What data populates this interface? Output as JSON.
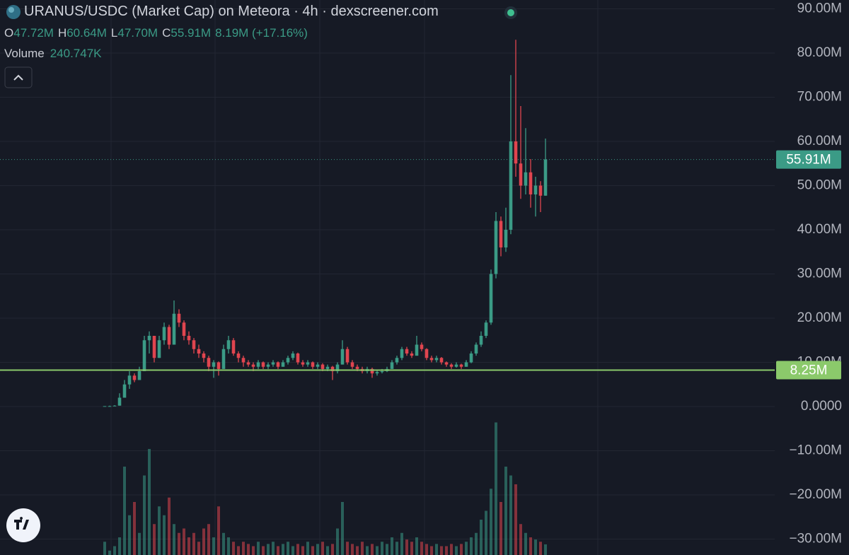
{
  "chart_data": {
    "type": "candlestick",
    "title": "URANUS/USDC (Market Cap) on Meteora · 4h · dexscreener.com",
    "ohlc_legend": [
      {
        "key": "O",
        "text": "47.72M"
      },
      {
        "key": "H",
        "text": "60.64M"
      },
      {
        "key": "L",
        "text": "47.70M"
      },
      {
        "key": "C",
        "text": "55.91M"
      }
    ],
    "change_text": "8.19M (+17.16%)",
    "volume_title": "Volume",
    "volume_text": "240.747K",
    "up_color": "#3b9b86",
    "down_color": "#e0454f",
    "grid": true,
    "ylim": [
      -32000000,
      92000000
    ],
    "yticks": [
      {
        "value": 90000000,
        "label": "90.00M"
      },
      {
        "value": 80000000,
        "label": "80.00M"
      },
      {
        "value": 70000000,
        "label": "70.00M"
      },
      {
        "value": 60000000,
        "label": "60.00M"
      },
      {
        "value": 50000000,
        "label": "50.00M"
      },
      {
        "value": 40000000,
        "label": "40.00M"
      },
      {
        "value": 30000000,
        "label": "30.00M"
      },
      {
        "value": 20000000,
        "label": "20.00M"
      },
      {
        "value": 10000000,
        "label": "10.00M"
      },
      {
        "value": 0,
        "label": "0.0000"
      },
      {
        "value": -10000000,
        "label": "−10.00M"
      },
      {
        "value": -20000000,
        "label": "−20.00M"
      },
      {
        "value": -30000000,
        "label": "−30.00M"
      }
    ],
    "price_lines": [
      {
        "value": 55910000,
        "label": "55.91M",
        "color": "#3b9b86",
        "style": "dotted"
      },
      {
        "value": 8250000,
        "label": "8.25M",
        "color": "#8bc96b",
        "style": "solid"
      }
    ],
    "open": [
      100000.0,
      100000.0,
      100000.0,
      200000.0,
      2000000.0,
      5000000.0,
      7000000.0,
      6000000.0,
      8000000.0,
      15000000.0,
      16000000.0,
      11000000.0,
      15000000.0,
      18000000.0,
      14000000.0,
      21000000.0,
      19000000.0,
      16000000.0,
      15000000.0,
      13000000.0,
      12000000.0,
      11000000.0,
      9000000.0,
      10000000.0,
      8500000.0,
      13000000.0,
      15000000.0,
      12000000.0,
      11000000.0,
      10000000.0,
      9500000.0,
      9000000.0,
      10000000.0,
      9000000.0,
      9500000.0,
      10000000.0,
      9000000.0,
      10000000.0,
      11000000.0,
      12000000.0,
      10000000.0,
      9500000.0,
      10000000.0,
      9000000.0,
      9500000.0,
      8500000.0,
      9000000.0,
      8000000.0,
      9500000.0,
      13000000.0,
      10000000.0,
      9000000.0,
      8500000.0,
      8000000.0,
      8500000.0,
      7500000.0,
      7800000.0,
      8000000.0,
      8500000.0,
      10000000.0,
      11000000.0,
      13000000.0,
      12000000.0,
      11500000.0,
      14000000.0,
      13000000.0,
      11000000.0,
      10500000.0,
      11000000.0,
      10000000.0,
      9500000.0,
      9000000.0,
      9500000.0,
      9000000.0,
      10000000.0,
      12000000.0,
      14000000.0,
      16000000.0,
      19000000.0,
      30000000.0,
      42000000.0,
      36000000.0,
      40000000.0,
      60000000.0,
      55000000.0,
      50000000.0,
      53000000.0,
      48000000.0,
      50000000.0,
      47720000.0
    ],
    "high": [
      100000.0,
      200000.0,
      300000.0,
      3000000.0,
      6000000.0,
      8000000.0,
      7500000.0,
      9000000.0,
      16000000.0,
      17000000.0,
      16000000.0,
      16000000.0,
      19000000.0,
      18500000.0,
      24000000.0,
      22000000.0,
      19500000.0,
      17000000.0,
      15500000.0,
      14000000.0,
      12500000.0,
      11500000.0,
      10500000.0,
      10200000.0,
      14000000.0,
      16000000.0,
      15500000.0,
      12500000.0,
      11500000.0,
      10500000.0,
      10000000.0,
      10500000.0,
      10200000.0,
      10000000.0,
      10500000.0,
      10200000.0,
      10500000.0,
      11500000.0,
      12500000.0,
      12200000.0,
      10500000.0,
      10500000.0,
      10200000.0,
      10000000.0,
      9800000.0,
      9500000.0,
      9200000.0,
      10000000.0,
      15000000.0,
      13500000.0,
      10500000.0,
      9500000.0,
      9000000.0,
      9000000.0,
      8800000.0,
      8200000.0,
      8500000.0,
      9000000.0,
      10500000.0,
      11500000.0,
      13500000.0,
      13500000.0,
      12500000.0,
      16000000.0,
      14500000.0,
      13200000.0,
      11500000.0,
      11500000.0,
      11200000.0,
      10200000.0,
      9800000.0,
      10000000.0,
      9700000.0,
      10500000.0,
      12500000.0,
      14500000.0,
      17000000.0,
      19500000.0,
      31000000.0,
      44000000.0,
      43000000.0,
      45000000.0,
      75000000.0,
      83000000.0,
      68000000.0,
      63000000.0,
      56000000.0,
      52000000.0,
      51000000.0,
      60640000.0
    ],
    "low": [
      100000.0,
      100000.0,
      100000.0,
      200000.0,
      2000000.0,
      4000000.0,
      5500000.0,
      6000000.0,
      8000000.0,
      12000000.0,
      10000000.0,
      11000000.0,
      14000000.0,
      13000000.0,
      14000000.0,
      18000000.0,
      15000000.0,
      14000000.0,
      12000000.0,
      11000000.0,
      10000000.0,
      8000000.0,
      6500000.0,
      7000000.0,
      8500000.0,
      12000000.0,
      11500000.0,
      10000000.0,
      9000000.0,
      9000000.0,
      8000000.0,
      8500000.0,
      8500000.0,
      8500000.0,
      9000000.0,
      8500000.0,
      9000000.0,
      9500000.0,
      10500000.0,
      9500000.0,
      9000000.0,
      9000000.0,
      8500000.0,
      8500000.0,
      8000000.0,
      8000000.0,
      6000000.0,
      7500000.0,
      9500000.0,
      9500000.0,
      8500000.0,
      8000000.0,
      7500000.0,
      7500000.0,
      6500000.0,
      7000000.0,
      7500000.0,
      7800000.0,
      8500000.0,
      9500000.0,
      10500000.0,
      11500000.0,
      11000000.0,
      11500000.0,
      12500000.0,
      10500000.0,
      10000000.0,
      10000000.0,
      9500000.0,
      9000000.0,
      8500000.0,
      8800000.0,
      8500000.0,
      9000000.0,
      9800000.0,
      11500000.0,
      13500000.0,
      15500000.0,
      18500000.0,
      29000000.0,
      34000000.0,
      35000000.0,
      39000000.0,
      52000000.0,
      47000000.0,
      48000000.0,
      45000000.0,
      43000000.0,
      44000000.0,
      47700000.0
    ],
    "close": [
      100000.0,
      100000.0,
      200000.0,
      2000000.0,
      5000000.0,
      7000000.0,
      6000000.0,
      8000000.0,
      15000000.0,
      16000000.0,
      11000000.0,
      15000000.0,
      18000000.0,
      14000000.0,
      21000000.0,
      19000000.0,
      16000000.0,
      15000000.0,
      13000000.0,
      12000000.0,
      11000000.0,
      9000000.0,
      10000000.0,
      8500000.0,
      13000000.0,
      15000000.0,
      12000000.0,
      11000000.0,
      10000000.0,
      9500000.0,
      9000000.0,
      10000000.0,
      9000000.0,
      9500000.0,
      10000000.0,
      9000000.0,
      10000000.0,
      11000000.0,
      12000000.0,
      10000000.0,
      9500000.0,
      10000000.0,
      9000000.0,
      9500000.0,
      8500000.0,
      9000000.0,
      8000000.0,
      9500000.0,
      13000000.0,
      10000000.0,
      9000000.0,
      8500000.0,
      8000000.0,
      8500000.0,
      7500000.0,
      7800000.0,
      8000000.0,
      8500000.0,
      10000000.0,
      11000000.0,
      13000000.0,
      12000000.0,
      11500000.0,
      14000000.0,
      13000000.0,
      11000000.0,
      10500000.0,
      11000000.0,
      10000000.0,
      9500000.0,
      9000000.0,
      9500000.0,
      9000000.0,
      10000000.0,
      12000000.0,
      14000000.0,
      16000000.0,
      19000000.0,
      30000000.0,
      42000000.0,
      36000000.0,
      40000000.0,
      60000000.0,
      55000000.0,
      50000000.0,
      53000000.0,
      48000000.0,
      50000000.0,
      47720000.0,
      55910000.0
    ],
    "volume": [
      300000,
      100000,
      200000,
      400000,
      2000000,
      900000,
      1200000,
      500000,
      1800000,
      2400000,
      700000,
      1100000,
      900000,
      1300000,
      700000,
      500000,
      600000,
      400000,
      500000,
      300000,
      600000,
      700000,
      400000,
      1100000,
      500000,
      400000,
      300000,
      200000,
      300000,
      250000,
      200000,
      300000,
      200000,
      250000,
      300000,
      200000,
      250000,
      300000,
      200000,
      250000,
      200000,
      300000,
      200000,
      250000,
      300000,
      200000,
      250000,
      600000,
      1200000,
      300000,
      250000,
      200000,
      300000,
      200000,
      250000,
      200000,
      300000,
      250000,
      400000,
      300000,
      500000,
      350000,
      300000,
      400000,
      300000,
      250000,
      200000,
      250000,
      200000,
      200000,
      250000,
      200000,
      250000,
      300000,
      400000,
      500000,
      800000,
      1000000,
      1500000,
      3000000,
      1200000,
      2000000,
      1800000,
      1600000,
      700000,
      500000,
      400000,
      350000,
      300000,
      240747
    ]
  }
}
